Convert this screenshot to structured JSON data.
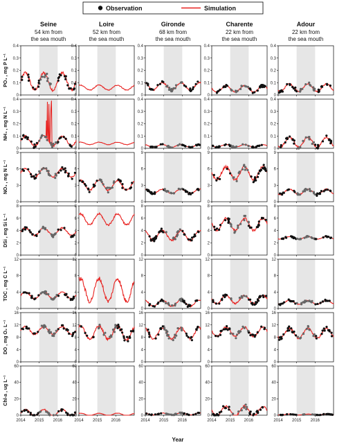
{
  "chart_data": {
    "type": "scatter",
    "layout": "small-multiples grid (rows = variables, columns = stations)",
    "legend": {
      "placement": "top-center",
      "items": [
        {
          "label": "Observation",
          "marker": "dot",
          "color": "#111111"
        },
        {
          "label": "Simulation",
          "marker": "line",
          "color": "#e8201e"
        }
      ]
    },
    "xlabel": "Year",
    "x_ticks": [
      "2014",
      "2015",
      "2016"
    ],
    "xlim": [
      2014,
      2017
    ],
    "shaded_period": [
      2015,
      2016
    ],
    "colors": {
      "simulation": "#e8201e",
      "simulation_shaded": "#f07070",
      "observation": "#111111",
      "observation_shaded": "#666666",
      "shade": "#e6e6e6"
    },
    "stations": [
      {
        "name": "Seine",
        "distance": "54 km from",
        "distance2": "the sea mouth"
      },
      {
        "name": "Loire",
        "distance": "52 km from",
        "distance2": "the sea mouth"
      },
      {
        "name": "Gironde",
        "distance": "68 km from",
        "distance2": "the sea mouth"
      },
      {
        "name": "Charente",
        "distance": "22 km from",
        "distance2": "the sea mouth"
      },
      {
        "name": "Adour",
        "distance": "22 km from",
        "distance2": "the sea mouth"
      }
    ],
    "variables": [
      {
        "label": "PO₄ , mg P L⁻¹",
        "ylim": [
          0,
          0.4
        ],
        "yticks": [
          "0",
          "0.1",
          "0.2",
          "0.3",
          "0.4"
        ],
        "levels": [
          0.11,
          0.06,
          0.07,
          0.05,
          0.06
        ],
        "amps": [
          0.07,
          0.02,
          0.03,
          0.025,
          0.03
        ],
        "obs_present": [
          true,
          false,
          true,
          true,
          true
        ],
        "spikes": [
          0,
          0,
          0,
          0,
          0
        ]
      },
      {
        "label": "NH₄ , mg N L⁻¹",
        "ylim": [
          0,
          0.4
        ],
        "yticks": [
          "0",
          "0.1",
          "0.2",
          "0.3",
          "0.4"
        ],
        "levels": [
          0.06,
          0.04,
          0.02,
          0.02,
          0.05
        ],
        "amps": [
          0.04,
          0.01,
          0.01,
          0.01,
          0.04
        ],
        "obs_present": [
          true,
          false,
          true,
          true,
          true
        ],
        "spikes": [
          1,
          0,
          0,
          0,
          0
        ]
      },
      {
        "label": "NO₃ , mg N L⁻¹",
        "ylim": [
          0,
          9
        ],
        "yticks": [
          "0",
          "3",
          "6",
          "9"
        ],
        "levels": [
          5.3,
          3.0,
          1.9,
          5.2,
          1.8
        ],
        "amps": [
          0.8,
          0.9,
          0.4,
          1.2,
          0.5
        ],
        "obs_present": [
          true,
          true,
          true,
          true,
          true
        ],
        "spikes": [
          0,
          0,
          0,
          0,
          0
        ]
      },
      {
        "label": "DSi , mg Si L⁻¹",
        "ylim": [
          0,
          8
        ],
        "yticks": [
          "0",
          "2",
          "4",
          "6",
          "8"
        ],
        "levels": [
          3.8,
          5.8,
          3.2,
          5.0,
          2.8
        ],
        "amps": [
          0.6,
          0.9,
          0.8,
          1.0,
          0.2
        ],
        "obs_present": [
          true,
          false,
          true,
          true,
          true
        ],
        "spikes": [
          0,
          0,
          0,
          0,
          0
        ]
      },
      {
        "label": "TOC , mg C L⁻¹",
        "ylim": [
          0,
          12
        ],
        "yticks": [
          "0",
          "4",
          "8",
          "12"
        ],
        "levels": [
          3.2,
          4.5,
          1.3,
          2.2,
          1.5
        ],
        "amps": [
          0.8,
          2.8,
          0.8,
          1.0,
          0.5
        ],
        "obs_present": [
          true,
          false,
          true,
          true,
          true
        ],
        "spikes": [
          0,
          0,
          0,
          0,
          0
        ]
      },
      {
        "label": "DO , mg O₂ L⁻¹",
        "ylim": [
          0,
          16
        ],
        "yticks": [
          "0",
          "4",
          "8",
          "12",
          "16"
        ],
        "levels": [
          10.2,
          9.5,
          9.3,
          9.8,
          9.3
        ],
        "amps": [
          1.3,
          2.2,
          1.8,
          1.5,
          1.6
        ],
        "obs_present": [
          true,
          true,
          true,
          true,
          true
        ],
        "spikes": [
          0,
          0,
          0,
          0,
          0
        ]
      },
      {
        "label": "Chl-a , ug L⁻¹",
        "ylim": [
          0,
          60
        ],
        "yticks": [
          "0",
          "20",
          "40",
          "60"
        ],
        "levels": [
          3,
          1,
          1.5,
          5,
          0.8
        ],
        "amps": [
          4,
          1.5,
          1.2,
          6,
          0.6
        ],
        "obs_present": [
          true,
          false,
          true,
          true,
          true
        ],
        "spikes": [
          0,
          0,
          0,
          0,
          0
        ]
      }
    ]
  }
}
